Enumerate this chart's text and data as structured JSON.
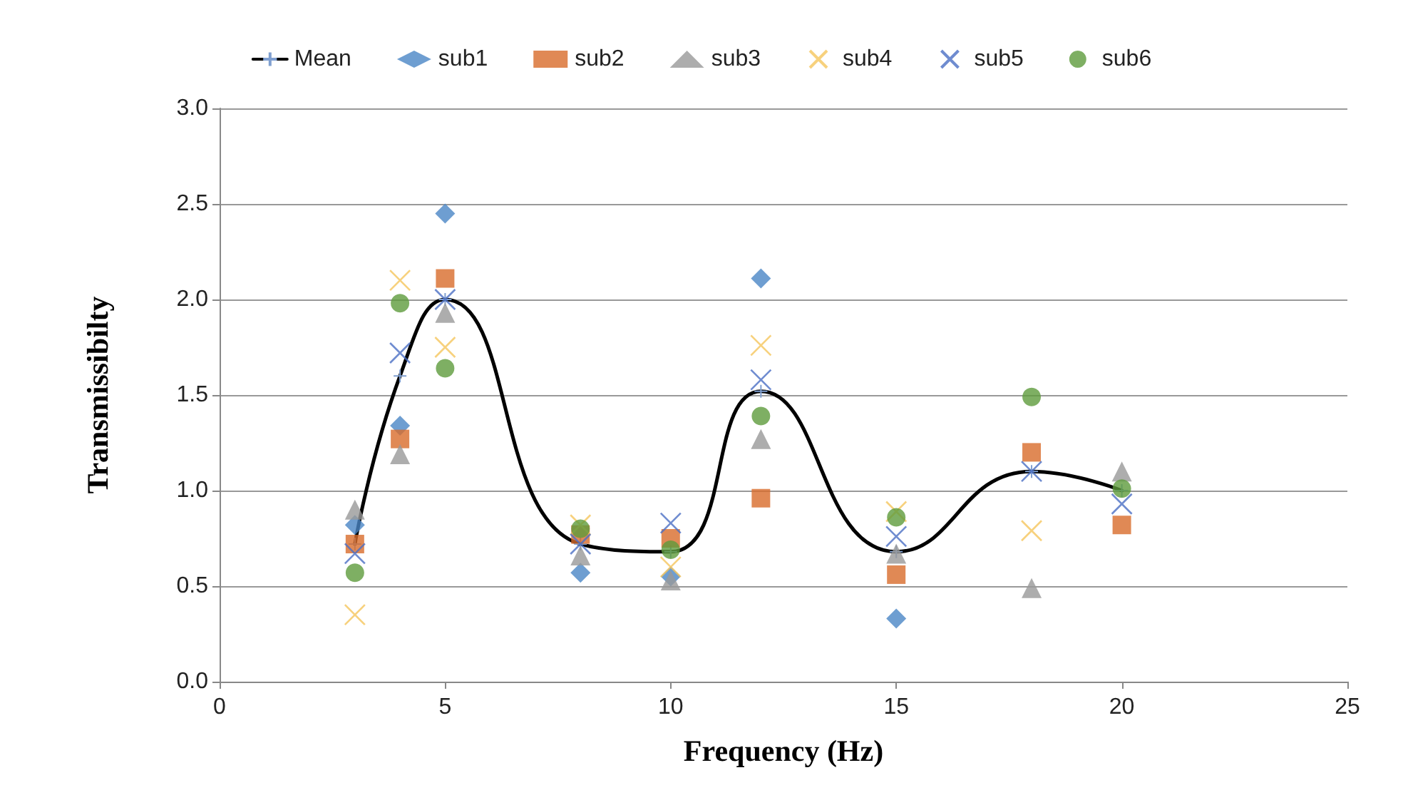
{
  "chart_data": {
    "type": "scatter",
    "xlabel": "Frequency (Hz)",
    "ylabel": "Transmissibilty",
    "x": [
      3,
      4,
      5,
      8,
      10,
      12,
      15,
      18,
      20
    ],
    "series": [
      {
        "name": "Mean",
        "type": "line",
        "color": "#000000",
        "marker": "cross",
        "line_style": "solid",
        "values": [
          0.72,
          1.6,
          2.0,
          0.72,
          0.68,
          1.52,
          0.68,
          1.1,
          1.0
        ]
      },
      {
        "name": "sub1",
        "color": "#4a86c5",
        "marker": "diamond",
        "values": [
          0.82,
          1.34,
          2.45,
          0.57,
          0.55,
          2.11,
          0.33,
          null,
          null
        ]
      },
      {
        "name": "sub2",
        "color": "#d86c2a",
        "marker": "square",
        "values": [
          0.72,
          1.27,
          2.11,
          0.77,
          0.75,
          0.96,
          0.56,
          1.2,
          0.82
        ]
      },
      {
        "name": "sub3",
        "color": "#999999",
        "marker": "triangle",
        "values": [
          0.9,
          1.19,
          1.93,
          0.66,
          0.53,
          1.27,
          0.67,
          0.49,
          1.1
        ]
      },
      {
        "name": "sub4",
        "color": "#f5c65c",
        "marker": "cross",
        "values": [
          0.35,
          2.1,
          1.75,
          0.82,
          0.6,
          1.76,
          0.89,
          0.79,
          null
        ]
      },
      {
        "name": "sub5",
        "color": "#4b6fc4",
        "marker": "cross",
        "values": [
          0.67,
          1.72,
          2.0,
          0.72,
          0.83,
          1.58,
          0.76,
          1.1,
          0.93
        ]
      },
      {
        "name": "sub6",
        "color": "#5e9b3c",
        "marker": "circle",
        "values": [
          0.57,
          1.98,
          1.64,
          0.8,
          0.69,
          1.39,
          0.86,
          1.49,
          1.01
        ]
      }
    ],
    "xlim": [
      0,
      25
    ],
    "xticks": [
      0,
      5,
      10,
      15,
      20,
      25
    ],
    "ylim": [
      0,
      3
    ],
    "yticks": [
      {
        "value": 0,
        "label": "0.0"
      },
      {
        "value": 0.5,
        "label": "0.5"
      },
      {
        "value": 1,
        "label": "1.0"
      },
      {
        "value": 1.5,
        "label": "1.5"
      },
      {
        "value": 2,
        "label": "2.0"
      },
      {
        "value": 2.5,
        "label": "2.5"
      },
      {
        "value": 3,
        "label": "3.0"
      }
    ],
    "grid": "y",
    "legend": "top"
  }
}
